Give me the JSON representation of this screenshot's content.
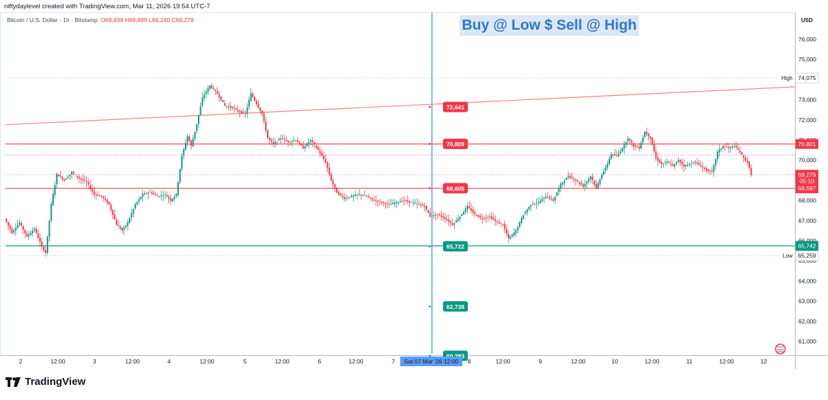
{
  "header": {
    "creator_line": "niftydaylevel created with TradingView.com, Mar 11, 2026 19:54 UTC-7",
    "symbol_line": "Bitcoin / U.S. Dollar · 1h · Bitstamp",
    "ohlc": {
      "open": "O69,838",
      "high": "H69,889",
      "low": "L69,240",
      "close": "C69,279"
    }
  },
  "banner": "Buy @ Low $ Sell @ High",
  "branding": {
    "logo_text": "TradingView",
    "icon": "tradingview-logo-icon"
  },
  "price_axis": {
    "currency": "USD",
    "ticks": [
      "76,000",
      "75,000",
      "74,000",
      "73,000",
      "72,000",
      "71,000",
      "70,000",
      "69,000",
      "68,000",
      "67,000",
      "66,000",
      "65,000",
      "64,000",
      "63,000",
      "62,000",
      "61,000"
    ],
    "high_label": "High",
    "high_value": "74,075",
    "low_label": "Low",
    "low_value": "65,259",
    "current_price": "69,279",
    "countdown": "05:10"
  },
  "time_axis": {
    "labels": [
      "2",
      "12:00",
      "3",
      "12:00",
      "4",
      "12:00",
      "5",
      "12:00",
      "6",
      "12:00",
      "7",
      "8",
      "12:00",
      "9",
      "12:00",
      "10",
      "12:00",
      "11",
      "12:00",
      "12"
    ],
    "cursor_label": "Sat 07 Mar '26   12:00"
  },
  "levels": [
    {
      "value": 70801,
      "text": "70,801",
      "kind": "resistance",
      "color": "#f23645"
    },
    {
      "value": 68597,
      "text": "68,597",
      "kind": "resistance",
      "color": "#f23645"
    },
    {
      "value": 65742,
      "text": "65,742",
      "kind": "support",
      "color": "#089981"
    }
  ],
  "cursor_markers": [
    {
      "value": 72641,
      "text": "72,641",
      "color": "#f23645"
    },
    {
      "value": 70809,
      "text": "70,809",
      "color": "#f23645"
    },
    {
      "value": 68605,
      "text": "68,605",
      "color": "#f23645"
    },
    {
      "value": 65722,
      "text": "65,722",
      "color": "#089981"
    },
    {
      "value": 62738,
      "text": "62,738",
      "color": "#089981"
    },
    {
      "value": 60283,
      "text": "60,283",
      "color": "#089981"
    }
  ],
  "colors": {
    "up": "#089981",
    "down": "#f23645",
    "cursor": "#5b9cf6",
    "purple_dotted": "#9c27b0",
    "grid": "#d8dbe2"
  },
  "chart_data": {
    "type": "candlestick",
    "timeframe": "1h",
    "ylim": [
      60000,
      76800
    ],
    "trendline": [
      {
        "time": "2026-03-02 00:00",
        "price": 71760
      },
      {
        "time": "2026-03-12 06:00",
        "price": 73640
      }
    ],
    "purple_dotted_level": 70250,
    "series": [
      {
        "name": "BTCUSD",
        "points": [
          {
            "t": 0,
            "p": 67100
          },
          {
            "t": 4,
            "p": 66400
          },
          {
            "t": 8,
            "p": 66900
          },
          {
            "t": 12,
            "p": 66200
          },
          {
            "t": 16,
            "p": 66600
          },
          {
            "t": 20,
            "p": 65700
          },
          {
            "t": 22,
            "p": 65400
          },
          {
            "t": 25,
            "p": 67800
          },
          {
            "t": 28,
            "p": 69300
          },
          {
            "t": 32,
            "p": 69000
          },
          {
            "t": 36,
            "p": 69400
          },
          {
            "t": 40,
            "p": 69100
          },
          {
            "t": 44,
            "p": 68900
          },
          {
            "t": 48,
            "p": 68300
          },
          {
            "t": 52,
            "p": 68200
          },
          {
            "t": 56,
            "p": 67800
          },
          {
            "t": 60,
            "p": 66800
          },
          {
            "t": 63,
            "p": 66500
          },
          {
            "t": 66,
            "p": 66900
          },
          {
            "t": 70,
            "p": 67800
          },
          {
            "t": 74,
            "p": 68300
          },
          {
            "t": 78,
            "p": 68400
          },
          {
            "t": 82,
            "p": 68200
          },
          {
            "t": 86,
            "p": 68300
          },
          {
            "t": 89,
            "p": 68000
          },
          {
            "t": 92,
            "p": 68300
          },
          {
            "t": 95,
            "p": 70200
          },
          {
            "t": 98,
            "p": 71200
          },
          {
            "t": 100,
            "p": 70700
          },
          {
            "t": 103,
            "p": 71800
          },
          {
            "t": 106,
            "p": 73100
          },
          {
            "t": 110,
            "p": 73700
          },
          {
            "t": 114,
            "p": 73300
          },
          {
            "t": 118,
            "p": 72700
          },
          {
            "t": 122,
            "p": 72600
          },
          {
            "t": 126,
            "p": 72400
          },
          {
            "t": 129,
            "p": 72300
          },
          {
            "t": 132,
            "p": 73300
          },
          {
            "t": 135,
            "p": 72800
          },
          {
            "t": 138,
            "p": 72300
          },
          {
            "t": 141,
            "p": 71100
          },
          {
            "t": 144,
            "p": 70800
          },
          {
            "t": 148,
            "p": 71100
          },
          {
            "t": 152,
            "p": 70900
          },
          {
            "t": 156,
            "p": 71000
          },
          {
            "t": 160,
            "p": 70600
          },
          {
            "t": 164,
            "p": 71000
          },
          {
            "t": 168,
            "p": 70500
          },
          {
            "t": 172,
            "p": 69900
          },
          {
            "t": 175,
            "p": 69000
          },
          {
            "t": 178,
            "p": 68400
          },
          {
            "t": 182,
            "p": 68100
          },
          {
            "t": 186,
            "p": 68200
          },
          {
            "t": 190,
            "p": 68300
          },
          {
            "t": 194,
            "p": 68200
          },
          {
            "t": 198,
            "p": 68000
          },
          {
            "t": 202,
            "p": 67900
          },
          {
            "t": 206,
            "p": 67800
          },
          {
            "t": 210,
            "p": 67900
          },
          {
            "t": 214,
            "p": 68000
          },
          {
            "t": 218,
            "p": 67900
          },
          {
            "t": 222,
            "p": 67800
          },
          {
            "t": 225,
            "p": 67700
          },
          {
            "t": 228,
            "p": 67200
          },
          {
            "t": 232,
            "p": 67300
          },
          {
            "t": 236,
            "p": 67100
          },
          {
            "t": 240,
            "p": 66800
          },
          {
            "t": 244,
            "p": 67200
          },
          {
            "t": 248,
            "p": 67700
          },
          {
            "t": 252,
            "p": 67300
          },
          {
            "t": 256,
            "p": 67100
          },
          {
            "t": 260,
            "p": 67200
          },
          {
            "t": 264,
            "p": 66900
          },
          {
            "t": 267,
            "p": 66800
          },
          {
            "t": 270,
            "p": 66100
          },
          {
            "t": 274,
            "p": 66500
          },
          {
            "t": 278,
            "p": 67300
          },
          {
            "t": 282,
            "p": 67800
          },
          {
            "t": 286,
            "p": 67900
          },
          {
            "t": 290,
            "p": 68200
          },
          {
            "t": 294,
            "p": 68000
          },
          {
            "t": 298,
            "p": 68800
          },
          {
            "t": 302,
            "p": 69200
          },
          {
            "t": 306,
            "p": 69000
          },
          {
            "t": 310,
            "p": 68700
          },
          {
            "t": 314,
            "p": 69200
          },
          {
            "t": 317,
            "p": 68600
          },
          {
            "t": 320,
            "p": 69300
          },
          {
            "t": 322,
            "p": 69600
          },
          {
            "t": 325,
            "p": 70300
          },
          {
            "t": 328,
            "p": 70200
          },
          {
            "t": 331,
            "p": 70600
          },
          {
            "t": 334,
            "p": 71100
          },
          {
            "t": 337,
            "p": 70700
          },
          {
            "t": 340,
            "p": 70600
          },
          {
            "t": 343,
            "p": 71400
          },
          {
            "t": 346,
            "p": 71100
          },
          {
            "t": 349,
            "p": 70100
          },
          {
            "t": 352,
            "p": 69800
          },
          {
            "t": 355,
            "p": 69900
          },
          {
            "t": 358,
            "p": 69700
          },
          {
            "t": 361,
            "p": 70000
          },
          {
            "t": 364,
            "p": 69700
          },
          {
            "t": 367,
            "p": 69800
          },
          {
            "t": 370,
            "p": 69900
          },
          {
            "t": 373,
            "p": 69700
          },
          {
            "t": 376,
            "p": 69500
          },
          {
            "t": 379,
            "p": 69400
          },
          {
            "t": 382,
            "p": 70400
          },
          {
            "t": 385,
            "p": 70700
          },
          {
            "t": 388,
            "p": 70600
          },
          {
            "t": 391,
            "p": 70700
          },
          {
            "t": 394,
            "p": 70400
          },
          {
            "t": 396,
            "p": 70100
          },
          {
            "t": 398,
            "p": 69900
          },
          {
            "t": 400,
            "p": 69280
          }
        ]
      }
    ]
  }
}
